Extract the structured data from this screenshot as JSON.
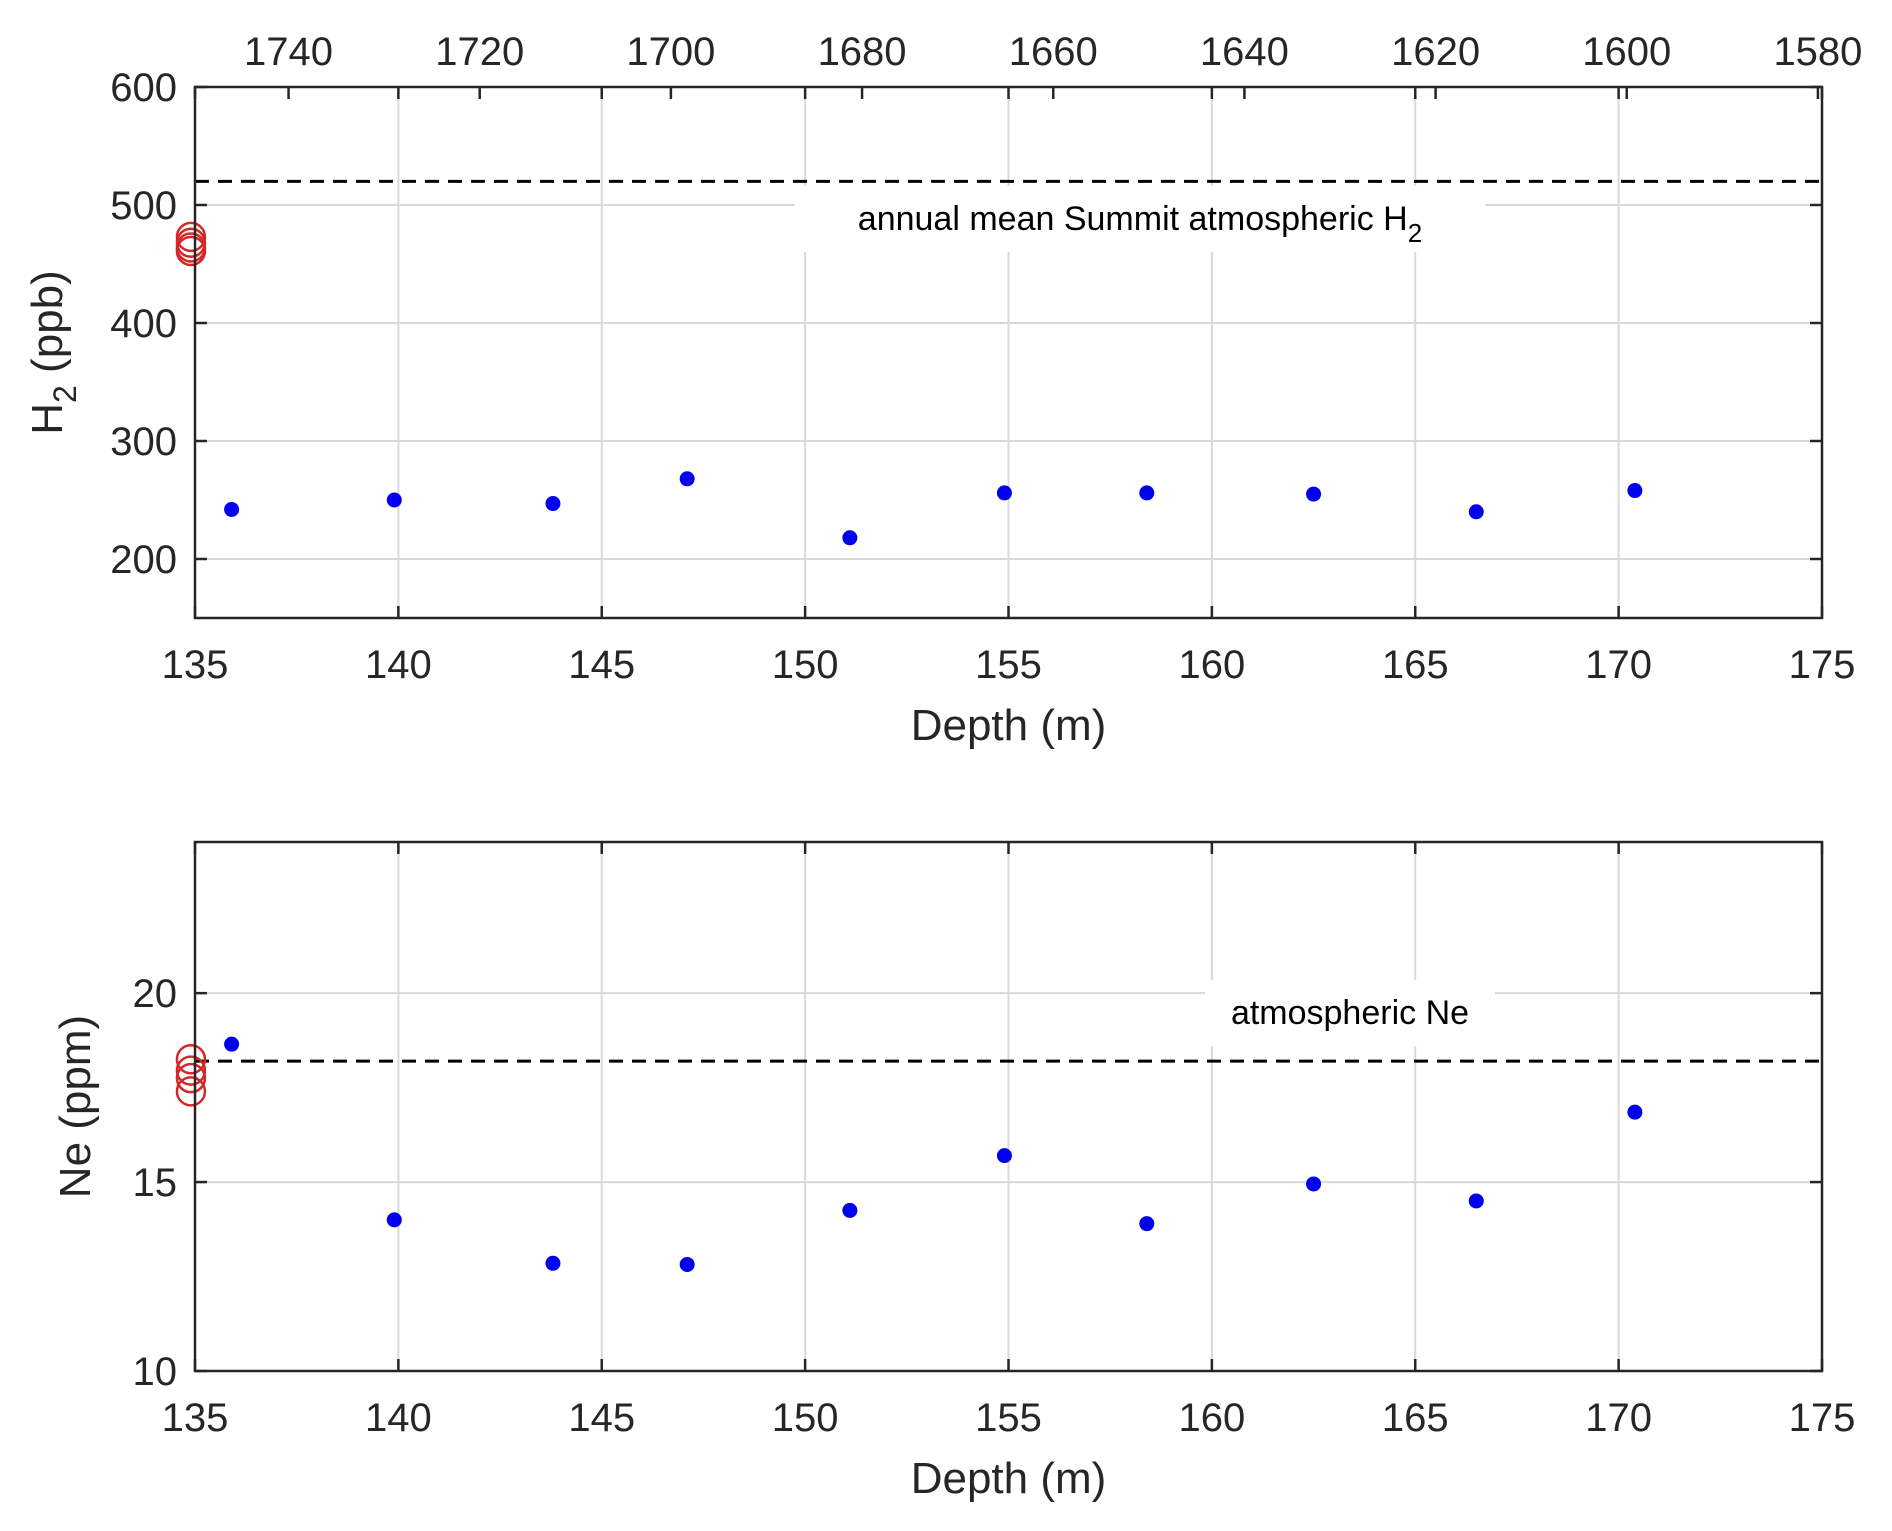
{
  "colors": {
    "measured": "#0000ee",
    "modern": "#d62728",
    "reference": "#000000",
    "axis": "#262626",
    "grid": "#d9d9d9"
  },
  "chart_data": [
    {
      "type": "scatter",
      "id": "h2",
      "xlabel": "Depth (m)",
      "ylabel": "H2 (ppb)",
      "ylabel_main": "H",
      "ylabel_sub": "2",
      "ylabel_rest": " (ppb)",
      "xlim": [
        135,
        175
      ],
      "ylim": [
        150,
        600
      ],
      "xticks": [
        135,
        140,
        145,
        150,
        155,
        160,
        165,
        170,
        175
      ],
      "yticks": [
        200,
        300,
        400,
        500,
        600
      ],
      "grid": true,
      "top_axis": {
        "label": "",
        "ticks": [
          1740,
          1720,
          1700,
          1680,
          1660,
          1640,
          1620,
          1600,
          1580
        ],
        "tick_depths": [
          137.3,
          142.0,
          146.7,
          151.4,
          156.1,
          160.8,
          165.5,
          170.2,
          174.9
        ]
      },
      "reference_line": {
        "y": 520,
        "label": "annual mean Summit atmospheric H2",
        "label_main": "annual mean Summit atmospheric H",
        "label_sub": "2"
      },
      "series": [
        {
          "name": "",
          "marker": "filled-dot",
          "x": [
            135.9,
            139.9,
            143.8,
            147.1,
            151.1,
            154.9,
            158.4,
            162.5,
            166.5,
            170.4
          ],
          "y": [
            242,
            250,
            247,
            268,
            218,
            256,
            256,
            255,
            240,
            258
          ]
        },
        {
          "name": "",
          "marker": "open-circle",
          "x": [
            134.9,
            134.9,
            134.9,
            134.9
          ],
          "y": [
            473,
            468,
            464,
            461
          ]
        }
      ]
    },
    {
      "type": "scatter",
      "id": "ne",
      "xlabel": "Depth (m)",
      "ylabel": "Ne (ppm)",
      "ylabel_main": "Ne (ppm)",
      "ylabel_sub": "",
      "ylabel_rest": "",
      "xlim": [
        135,
        175
      ],
      "ylim": [
        10,
        24
      ],
      "xticks": [
        135,
        140,
        145,
        150,
        155,
        160,
        165,
        170,
        175
      ],
      "yticks": [
        10,
        15,
        20
      ],
      "grid": true,
      "reference_line": {
        "y": 18.2,
        "label": "atmospheric Ne",
        "label_main": "atmospheric Ne",
        "label_sub": ""
      },
      "series": [
        {
          "name": "",
          "marker": "filled-dot",
          "x": [
            135.9,
            139.9,
            143.8,
            147.1,
            151.1,
            154.9,
            158.4,
            162.5,
            166.5,
            170.4
          ],
          "y": [
            18.65,
            14.0,
            12.85,
            12.82,
            14.25,
            15.7,
            13.9,
            14.95,
            14.5,
            16.85
          ]
        },
        {
          "name": "",
          "marker": "open-circle",
          "x": [
            134.9,
            134.9,
            134.9,
            134.9
          ],
          "y": [
            18.25,
            17.95,
            17.75,
            17.4
          ]
        }
      ]
    }
  ]
}
